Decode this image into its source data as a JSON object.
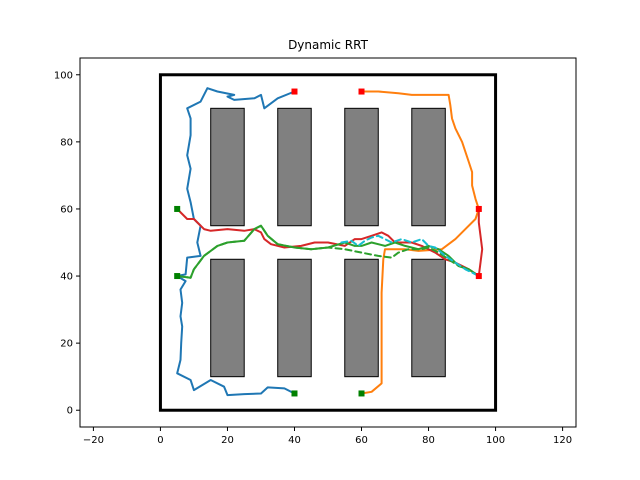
{
  "chart_data": {
    "type": "line",
    "title": "Dynamic RRT",
    "xlabel": "",
    "ylabel": "",
    "xlim": [
      -24,
      124
    ],
    "ylim": [
      -5,
      105
    ],
    "xticks": [
      -20,
      0,
      20,
      40,
      60,
      80,
      100,
      120
    ],
    "yticks": [
      0,
      20,
      40,
      60,
      80,
      100
    ],
    "grid": false,
    "boundary": {
      "x0": 0,
      "y0": 0,
      "x1": 100,
      "y1": 100,
      "color": "#000000"
    },
    "obstacles": [
      {
        "x0": 15,
        "y0": 55,
        "x1": 25,
        "y1": 90
      },
      {
        "x0": 35,
        "y0": 55,
        "x1": 45,
        "y1": 90
      },
      {
        "x0": 55,
        "y0": 55,
        "x1": 65,
        "y1": 90
      },
      {
        "x0": 75,
        "y0": 55,
        "x1": 85,
        "y1": 90
      },
      {
        "x0": 15,
        "y0": 10,
        "x1": 25,
        "y1": 45
      },
      {
        "x0": 35,
        "y0": 10,
        "x1": 45,
        "y1": 45
      },
      {
        "x0": 55,
        "y0": 10,
        "x1": 65,
        "y1": 45
      },
      {
        "x0": 75,
        "y0": 10,
        "x1": 85,
        "y1": 45
      }
    ],
    "obstacle_color": "#808080",
    "start_markers": [
      {
        "x": 40,
        "y": 5
      },
      {
        "x": 60,
        "y": 5
      },
      {
        "x": 5,
        "y": 60
      },
      {
        "x": 5,
        "y": 40
      }
    ],
    "goal_markers": [
      {
        "x": 40,
        "y": 95
      },
      {
        "x": 60,
        "y": 95
      },
      {
        "x": 95,
        "y": 60
      },
      {
        "x": 95,
        "y": 40
      }
    ],
    "start_color": "#008000",
    "goal_color": "#ff0000",
    "series": [
      {
        "color": "#1f77b4",
        "dashed": false,
        "points": [
          [
            40,
            5
          ],
          [
            37,
            6.5
          ],
          [
            32,
            6.8
          ],
          [
            30,
            5
          ],
          [
            25,
            4.8
          ],
          [
            20,
            4.5
          ],
          [
            19,
            7
          ],
          [
            15,
            9
          ],
          [
            10,
            6
          ],
          [
            9,
            9
          ],
          [
            5,
            11
          ],
          [
            6,
            15
          ],
          [
            6.2,
            20
          ],
          [
            6.5,
            25
          ],
          [
            6,
            28
          ],
          [
            6.5,
            32
          ],
          [
            6,
            36
          ],
          [
            7.5,
            38.5
          ],
          [
            5,
            40
          ],
          [
            7.5,
            40.5
          ],
          [
            8,
            45.5
          ],
          [
            12,
            46
          ],
          [
            11,
            50
          ],
          [
            12,
            55
          ],
          [
            10,
            57
          ],
          [
            9,
            62
          ],
          [
            8,
            66
          ],
          [
            9,
            72
          ],
          [
            8,
            76
          ],
          [
            9,
            82
          ],
          [
            9,
            87
          ],
          [
            8,
            90
          ],
          [
            12,
            92
          ],
          [
            14,
            96
          ],
          [
            17,
            95
          ],
          [
            22,
            94
          ],
          [
            22,
            94
          ],
          [
            20,
            93.5
          ],
          [
            22,
            92.5
          ],
          [
            28,
            93
          ],
          [
            30,
            94
          ],
          [
            31,
            90
          ],
          [
            35,
            93
          ],
          [
            40,
            95
          ]
        ]
      },
      {
        "color": "#ff7f0e",
        "dashed": false,
        "points": [
          [
            60,
            5
          ],
          [
            63,
            5.5
          ],
          [
            66,
            8
          ],
          [
            66,
            15
          ],
          [
            66,
            25
          ],
          [
            66,
            35
          ],
          [
            66.5,
            45
          ],
          [
            67,
            48
          ],
          [
            73,
            48
          ],
          [
            77,
            47.5
          ],
          [
            84,
            48
          ],
          [
            88,
            51
          ],
          [
            91,
            54
          ],
          [
            94,
            57
          ],
          [
            95,
            60
          ],
          [
            94,
            63
          ],
          [
            93,
            67
          ],
          [
            93,
            71
          ],
          [
            92,
            74
          ],
          [
            90,
            80
          ],
          [
            88,
            84
          ],
          [
            87,
            87
          ],
          [
            86.5,
            91
          ],
          [
            86,
            94
          ],
          [
            80,
            94
          ],
          [
            75,
            94
          ],
          [
            71,
            94.5
          ],
          [
            65,
            95
          ],
          [
            60,
            95
          ]
        ]
      },
      {
        "color": "#d62728",
        "dashed": false,
        "points": [
          [
            5,
            60
          ],
          [
            8,
            57
          ],
          [
            10,
            57
          ],
          [
            13,
            54
          ],
          [
            15,
            53.5
          ],
          [
            20,
            54
          ],
          [
            25,
            53.5
          ],
          [
            28,
            54
          ],
          [
            30,
            53
          ],
          [
            31,
            51
          ],
          [
            33,
            49.5
          ],
          [
            37,
            48.5
          ],
          [
            42,
            49
          ],
          [
            46,
            50
          ],
          [
            50,
            50
          ],
          [
            55,
            49
          ],
          [
            58,
            51
          ],
          [
            60,
            51
          ],
          [
            63,
            52
          ],
          [
            66,
            53
          ],
          [
            68,
            52
          ],
          [
            70,
            50
          ],
          [
            75,
            50
          ],
          [
            78,
            49
          ],
          [
            82,
            47
          ],
          [
            85,
            45
          ],
          [
            88,
            44
          ],
          [
            92,
            42
          ],
          [
            95,
            40
          ],
          [
            96,
            48
          ],
          [
            95.5,
            52
          ],
          [
            95,
            56
          ],
          [
            95,
            60
          ]
        ]
      },
      {
        "color": "#2ca02c",
        "dashed": false,
        "points": [
          [
            5,
            40
          ],
          [
            9,
            39.5
          ],
          [
            10,
            42
          ],
          [
            13,
            46
          ],
          [
            17,
            49
          ],
          [
            20,
            50
          ],
          [
            25,
            50.5
          ],
          [
            28,
            54
          ],
          [
            30,
            55
          ],
          [
            32,
            52
          ],
          [
            35,
            49.5
          ],
          [
            40,
            48.5
          ],
          [
            45,
            48
          ],
          [
            50,
            48.5
          ],
          [
            55,
            50
          ],
          [
            58,
            49
          ],
          [
            60,
            49
          ],
          [
            63,
            50
          ],
          [
            67,
            49
          ],
          [
            70,
            50
          ],
          [
            73,
            49
          ],
          [
            77,
            48
          ],
          [
            80,
            49
          ],
          [
            83,
            48
          ],
          [
            86,
            46
          ],
          [
            89,
            43
          ],
          [
            92,
            42
          ],
          [
            95,
            40
          ]
        ]
      },
      {
        "color": "#2ca02c",
        "dashed": true,
        "points": [
          [
            5,
            40
          ],
          [
            9,
            39.5
          ],
          [
            10,
            42
          ],
          [
            13,
            46
          ],
          [
            17,
            49
          ],
          [
            20,
            50
          ],
          [
            25,
            50.5
          ],
          [
            28,
            54
          ],
          [
            30,
            55
          ],
          [
            32,
            52
          ],
          [
            35,
            49.5
          ],
          [
            40,
            48.5
          ],
          [
            45,
            48
          ],
          [
            50,
            48.5
          ],
          [
            55,
            48
          ],
          [
            60,
            47
          ],
          [
            65,
            46
          ],
          [
            69,
            45.5
          ],
          [
            71,
            47
          ],
          [
            74,
            48
          ],
          [
            78,
            48
          ],
          [
            80,
            48.5
          ],
          [
            83,
            47
          ],
          [
            86,
            45
          ],
          [
            89,
            43
          ],
          [
            92,
            42
          ],
          [
            95,
            40
          ]
        ]
      },
      {
        "color": "#17becf",
        "dashed": true,
        "points": [
          [
            54,
            50
          ],
          [
            57,
            50.5
          ],
          [
            59,
            49
          ],
          [
            61,
            50.5
          ],
          [
            63,
            51.5
          ],
          [
            65,
            52
          ],
          [
            67,
            51
          ],
          [
            69,
            50
          ],
          [
            72,
            51
          ],
          [
            75,
            50
          ],
          [
            78,
            51
          ],
          [
            80,
            49
          ],
          [
            82,
            48.5
          ],
          [
            85,
            46
          ],
          [
            88,
            44
          ],
          [
            91,
            42
          ],
          [
            95,
            40
          ]
        ]
      }
    ]
  }
}
